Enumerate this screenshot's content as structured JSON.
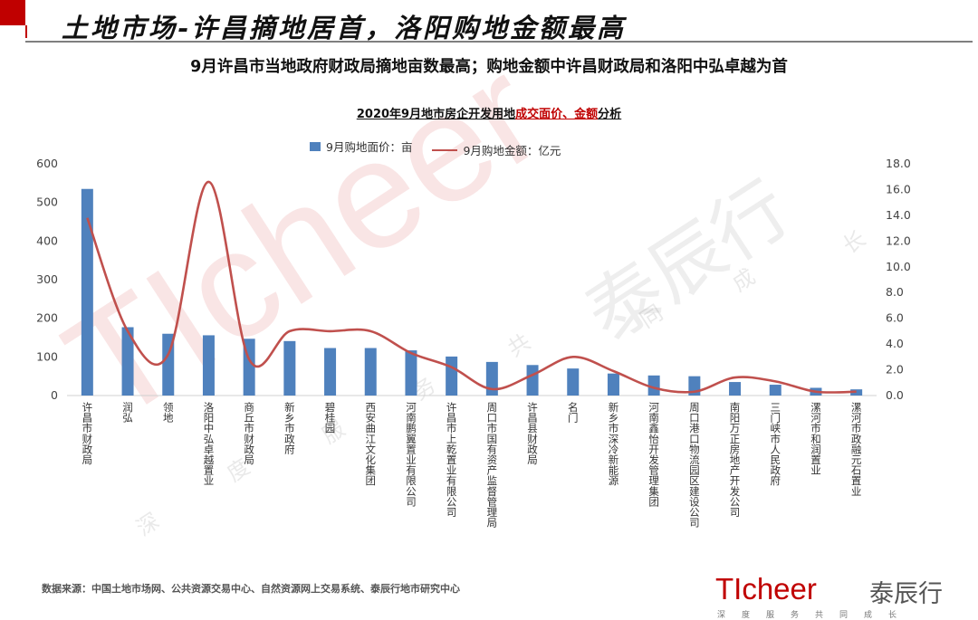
{
  "header": {
    "title": "土地市场-许昌摘地居首，洛阳购地金额最高"
  },
  "subtitle": "9月许昌市当地政府财政局摘地亩数最高；购地金额中许昌财政局和洛阳中弘卓越为首",
  "chart_title": {
    "prefix": "2020年9月地市房企开发用地",
    "highlight": "成交面价、金额",
    "suffix": "分析"
  },
  "legend": {
    "bar_label": "9月购地面价：亩",
    "line_label": "9月购地金额：亿元"
  },
  "source": "数据来源：中国土地市场网、公共资源交易中心、自然资源网上交易系统、泰辰行地市研究中心",
  "logo": {
    "brand_en_ti": "TI",
    "brand_en_cheer": "cheer",
    "brand_cn": "泰辰行",
    "tagline": "深度服务共同成长"
  },
  "watermark": {
    "brand_en": "TIcheer",
    "brand_cn": "泰辰行",
    "tagline_chars": [
      "深",
      "度",
      "服",
      "务",
      "共",
      "同",
      "成",
      "长"
    ]
  },
  "colors": {
    "bar": "#4f81bd",
    "line": "#c0504d",
    "accent": "#c00000"
  },
  "chart_data": {
    "type": "bar",
    "categories": [
      "许昌市财政局",
      "润弘",
      "领地",
      "洛阳中弘卓越置业",
      "商丘市财政局",
      "新乡市政府",
      "碧桂园",
      "西安曲江文化集团",
      "河南鹏翼置业有限公司",
      "许昌市上乾置业有限公司",
      "周口市国有资产监督管理局",
      "许昌县财政局",
      "名门",
      "新乡市深冷新能源",
      "河南鑫怡开发管理集团",
      "周口港口物流园区建设公司",
      "南阳万正房地产开发公司",
      "三门峡市人民政府",
      "漯河市和润置业",
      "漯河市政融元石置业"
    ],
    "series": [
      {
        "name": "9月购地面价：亩",
        "type": "bar",
        "axis": "left",
        "values": [
          535,
          177,
          160,
          156,
          147,
          141,
          123,
          123,
          117,
          101,
          87,
          79,
          70,
          57,
          52,
          50,
          35,
          28,
          20,
          16
        ]
      },
      {
        "name": "9月购地金额：亿元",
        "type": "line",
        "axis": "right",
        "values": [
          13.8,
          5.0,
          3.2,
          16.6,
          2.8,
          5.0,
          5.0,
          5.0,
          3.3,
          2.2,
          0.5,
          1.6,
          3.0,
          1.9,
          0.6,
          0.3,
          1.4,
          1.1,
          0.3,
          0.3
        ]
      }
    ],
    "y_left": {
      "min": 0,
      "max": 600,
      "ticks": [
        "0",
        "100",
        "200",
        "300",
        "400",
        "500",
        "600"
      ]
    },
    "y_right": {
      "min": 0,
      "max": 18,
      "ticks": [
        "0.0",
        "2.0",
        "4.0",
        "6.0",
        "8.0",
        "10.0",
        "12.0",
        "14.0",
        "16.0",
        "18.0"
      ]
    },
    "grid": false,
    "legend_position": "top"
  }
}
